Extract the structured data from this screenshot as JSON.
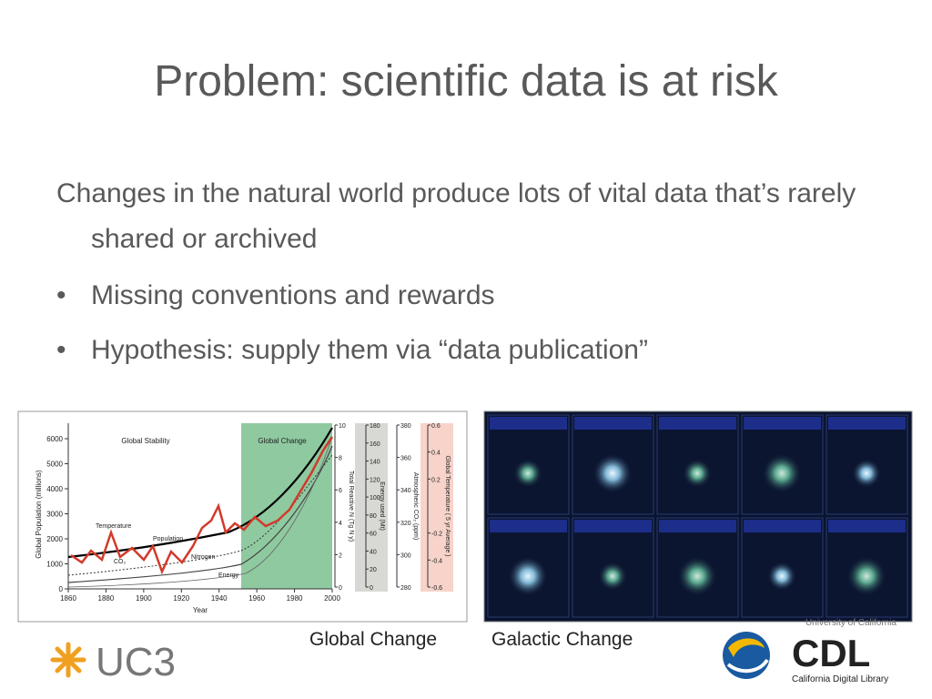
{
  "title": "Problem: scientific data is at risk",
  "body": {
    "lead": "Changes in the natural world produce lots of vital data that’s rarely shared or archived",
    "bullets": [
      "Missing conventions and rewards",
      "Hypothesis: supply them via “data publication”"
    ]
  },
  "figure": {
    "region_labels": [
      "Global Stability",
      "Global Change"
    ],
    "series_labels": [
      "Temperature",
      "Population",
      "CO₂",
      "Nitrogen",
      "Energy"
    ],
    "x_label": "Year",
    "x_ticks": [
      1860,
      1880,
      1900,
      1920,
      1940,
      1960,
      1980,
      2000
    ],
    "y_label": "Global Population (millions)",
    "y_ticks": [
      0,
      1000,
      2000,
      3000,
      4000,
      5000,
      6000
    ],
    "right_axes": [
      {
        "label": "Total Reactive N (Tg N y)",
        "ticks": [
          0,
          2,
          4,
          6,
          8,
          10
        ]
      },
      {
        "label": "Energy used (Mt)",
        "ticks": [
          0,
          20,
          40,
          60,
          80,
          100,
          120,
          140,
          160,
          180
        ]
      },
      {
        "label": "Atmospheric CO₂ (ppm)",
        "ticks": [
          280,
          300,
          320,
          340,
          360,
          380
        ]
      },
      {
        "label": "Global Temperature ( 5 yr Average )",
        "ticks": [
          -0.6,
          -0.4,
          -0.2,
          0.2,
          0.4,
          0.6
        ]
      }
    ]
  },
  "captions": [
    "Global Change",
    "Galactic Change"
  ],
  "logos": {
    "uc3": "UC3",
    "cdl": {
      "top": "University of California",
      "name": "CDL",
      "sub": "California Digital Library"
    }
  }
}
